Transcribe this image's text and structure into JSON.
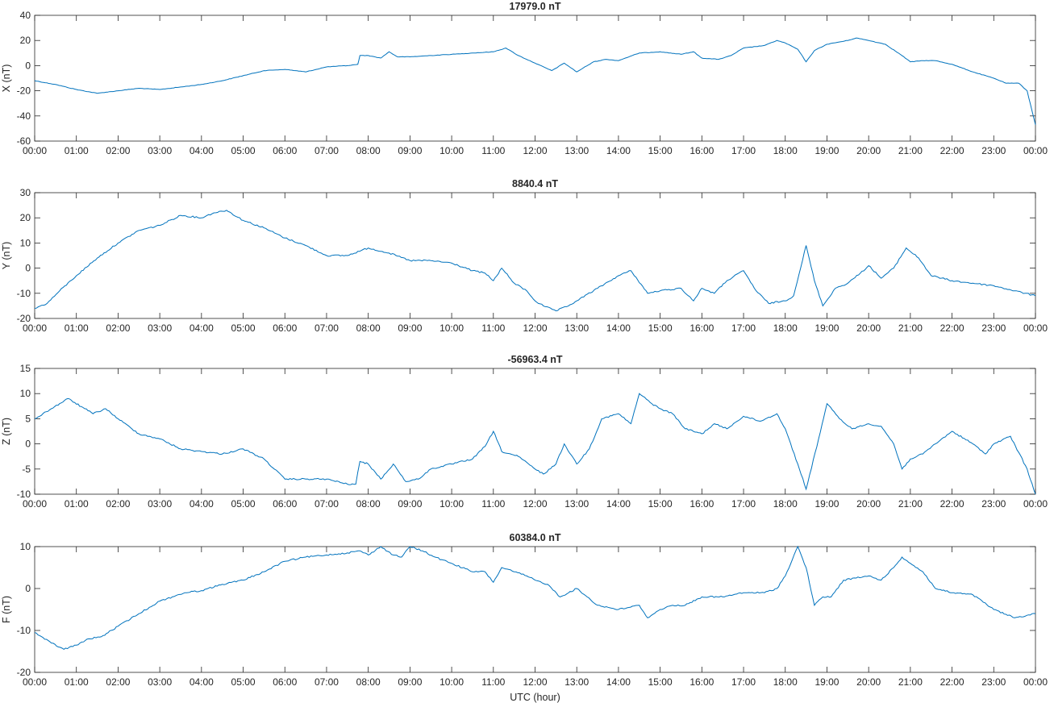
{
  "figure": {
    "xlabel": "UTC (hour)"
  },
  "chart_data": [
    {
      "type": "line",
      "title": "17979.0 nT",
      "xlabel": "",
      "ylabel": "X (nT)",
      "xlim": [
        0,
        24
      ],
      "ylim": [
        -60,
        40
      ],
      "yticks": [
        -60,
        -40,
        -20,
        0,
        20,
        40
      ],
      "xtick_labels": [
        "00:00",
        "01:00",
        "02:00",
        "03:00",
        "04:00",
        "05:00",
        "06:00",
        "07:00",
        "08:00",
        "09:00",
        "10:00",
        "11:00",
        "12:00",
        "13:00",
        "14:00",
        "15:00",
        "16:00",
        "17:00",
        "18:00",
        "19:00",
        "20:00",
        "21:00",
        "22:00",
        "23:00",
        "00:00"
      ],
      "grid": false,
      "color": "#0072BD",
      "x": [
        0,
        0.5,
        1.0,
        1.5,
        2.0,
        2.5,
        3.0,
        3.5,
        4.0,
        4.5,
        5.0,
        5.5,
        6.0,
        6.5,
        7.0,
        7.5,
        7.75,
        7.8,
        8.0,
        8.3,
        8.5,
        8.7,
        9.0,
        9.5,
        10.0,
        10.5,
        11.0,
        11.3,
        11.6,
        12.0,
        12.4,
        12.7,
        13.0,
        13.4,
        13.7,
        14.0,
        14.5,
        15.0,
        15.5,
        15.8,
        16.0,
        16.4,
        16.7,
        17.0,
        17.5,
        17.8,
        18.0,
        18.3,
        18.5,
        18.7,
        19.0,
        19.5,
        19.7,
        20.0,
        20.4,
        20.8,
        21.0,
        21.3,
        21.6,
        22.0,
        22.5,
        23.0,
        23.3,
        23.6,
        23.8,
        24.0
      ],
      "y": [
        -12,
        -15,
        -19,
        -22,
        -20,
        -18,
        -19,
        -17,
        -15,
        -12,
        -8,
        -4,
        -3,
        -5,
        -1,
        0,
        1,
        8,
        8,
        6,
        11,
        7,
        7,
        8,
        9,
        10,
        11,
        14,
        8,
        2,
        -4,
        2,
        -5,
        3,
        5,
        4,
        10,
        11,
        9,
        11,
        6,
        5,
        8,
        14,
        16,
        20,
        18,
        13,
        3,
        12,
        17,
        20,
        22,
        20,
        17,
        8,
        3,
        4,
        4,
        1,
        -5,
        -10,
        -14,
        -14,
        -20,
        -47
      ]
    },
    {
      "type": "line",
      "title": "8840.4 nT",
      "xlabel": "",
      "ylabel": "Y (nT)",
      "xlim": [
        0,
        24
      ],
      "ylim": [
        -20,
        30
      ],
      "yticks": [
        -20,
        -10,
        0,
        10,
        20,
        30
      ],
      "xtick_labels": [
        "00:00",
        "01:00",
        "02:00",
        "03:00",
        "04:00",
        "05:00",
        "06:00",
        "07:00",
        "08:00",
        "09:00",
        "10:00",
        "11:00",
        "12:00",
        "13:00",
        "14:00",
        "15:00",
        "16:00",
        "17:00",
        "18:00",
        "19:00",
        "20:00",
        "21:00",
        "22:00",
        "23:00",
        "00:00"
      ],
      "grid": false,
      "color": "#0072BD",
      "x": [
        0,
        0.3,
        0.6,
        1.0,
        1.5,
        2.0,
        2.5,
        3.0,
        3.5,
        4.0,
        4.3,
        4.6,
        5.0,
        5.5,
        6.0,
        6.5,
        7.0,
        7.5,
        8.0,
        8.5,
        9.0,
        9.5,
        10.0,
        10.5,
        10.8,
        11.0,
        11.2,
        11.5,
        11.8,
        12.0,
        12.2,
        12.5,
        12.8,
        13.0,
        13.5,
        14.0,
        14.3,
        14.7,
        15.0,
        15.5,
        15.8,
        16.0,
        16.3,
        16.6,
        17.0,
        17.3,
        17.6,
        18.0,
        18.2,
        18.5,
        18.7,
        18.9,
        19.2,
        19.5,
        19.8,
        20.0,
        20.3,
        20.6,
        20.9,
        21.2,
        21.5,
        22.0,
        22.5,
        23.0,
        23.5,
        24.0
      ],
      "y": [
        -16,
        -14,
        -9,
        -3,
        4,
        10,
        15,
        17,
        21,
        20,
        22,
        23,
        19,
        16,
        12,
        9,
        5,
        5,
        8,
        6,
        3,
        3,
        2,
        -1,
        -2,
        -5,
        0,
        -6,
        -9,
        -13,
        -15,
        -17,
        -15,
        -13,
        -8,
        -3,
        -1,
        -10,
        -9,
        -8,
        -13,
        -8,
        -10,
        -5,
        -1,
        -9,
        -14,
        -13,
        -11,
        9,
        -5,
        -15,
        -8,
        -6,
        -2,
        1,
        -4,
        0,
        8,
        4,
        -3,
        -5,
        -6,
        -7,
        -9,
        -11
      ]
    },
    {
      "type": "line",
      "title": "-56963.4 nT",
      "xlabel": "",
      "ylabel": "Z (nT)",
      "xlim": [
        0,
        24
      ],
      "ylim": [
        -10,
        15
      ],
      "yticks": [
        -10,
        -5,
        0,
        5,
        10,
        15
      ],
      "xtick_labels": [
        "00:00",
        "01:00",
        "02:00",
        "03:00",
        "04:00",
        "05:00",
        "06:00",
        "07:00",
        "08:00",
        "09:00",
        "10:00",
        "11:00",
        "12:00",
        "13:00",
        "14:00",
        "15:00",
        "16:00",
        "17:00",
        "18:00",
        "19:00",
        "20:00",
        "21:00",
        "22:00",
        "23:00",
        "00:00"
      ],
      "grid": false,
      "color": "#0072BD",
      "x": [
        0,
        0.4,
        0.8,
        1.2,
        1.4,
        1.7,
        2.0,
        2.5,
        3.0,
        3.5,
        4.0,
        4.5,
        5.0,
        5.5,
        6.0,
        6.5,
        7.0,
        7.5,
        7.7,
        7.8,
        8.0,
        8.3,
        8.6,
        8.9,
        9.2,
        9.5,
        10.0,
        10.5,
        10.8,
        11.0,
        11.2,
        11.6,
        12.0,
        12.2,
        12.5,
        12.7,
        13.0,
        13.3,
        13.6,
        14.0,
        14.3,
        14.5,
        14.8,
        15.0,
        15.3,
        15.6,
        16.0,
        16.3,
        16.6,
        17.0,
        17.4,
        17.8,
        18.0,
        18.3,
        18.5,
        18.8,
        19.0,
        19.3,
        19.6,
        20.0,
        20.3,
        20.6,
        20.8,
        21.0,
        21.3,
        21.6,
        22.0,
        22.5,
        22.8,
        23.0,
        23.4,
        23.8,
        24.0
      ],
      "y": [
        5,
        7,
        9,
        7,
        6,
        7,
        5,
        2,
        1,
        -1,
        -1.5,
        -2,
        -1,
        -3,
        -7,
        -7,
        -7,
        -8,
        -8,
        -3.5,
        -4,
        -7,
        -4,
        -7.5,
        -7,
        -5,
        -4,
        -3,
        -0.5,
        2.5,
        -1.5,
        -2.5,
        -5,
        -6,
        -4,
        0,
        -4,
        -1,
        5,
        6,
        4,
        10,
        8,
        7,
        6,
        3,
        2,
        4,
        3,
        5.5,
        4.5,
        6,
        3,
        -4,
        -9,
        1,
        8,
        5,
        3,
        4,
        3.5,
        0,
        -5,
        -3,
        -2,
        0,
        2.5,
        0,
        -2,
        0,
        1.5,
        -5,
        -10
      ]
    },
    {
      "type": "line",
      "title": "60384.0 nT",
      "xlabel": "UTC (hour)",
      "ylabel": "F (nT)",
      "xlim": [
        0,
        24
      ],
      "ylim": [
        -20,
        10
      ],
      "yticks": [
        -20,
        -10,
        0,
        10
      ],
      "xtick_labels": [
        "00:00",
        "01:00",
        "02:00",
        "03:00",
        "04:00",
        "05:00",
        "06:00",
        "07:00",
        "08:00",
        "09:00",
        "10:00",
        "11:00",
        "12:00",
        "13:00",
        "14:00",
        "15:00",
        "16:00",
        "17:00",
        "18:00",
        "19:00",
        "20:00",
        "21:00",
        "22:00",
        "23:00",
        "00:00"
      ],
      "grid": false,
      "color": "#0072BD",
      "x": [
        0,
        0.4,
        0.7,
        1.0,
        1.3,
        1.6,
        2.0,
        2.5,
        3.0,
        3.3,
        3.6,
        4.0,
        4.5,
        5.0,
        5.5,
        6.0,
        6.5,
        7.0,
        7.5,
        7.8,
        8.0,
        8.3,
        8.6,
        8.8,
        9.0,
        9.3,
        9.6,
        10.0,
        10.5,
        10.8,
        11.0,
        11.2,
        11.5,
        11.8,
        12.0,
        12.3,
        12.6,
        13.0,
        13.5,
        14.0,
        14.5,
        14.7,
        15.0,
        15.3,
        15.6,
        16.0,
        16.5,
        17.0,
        17.5,
        17.8,
        18.0,
        18.3,
        18.5,
        18.7,
        18.9,
        19.1,
        19.4,
        19.7,
        20.0,
        20.3,
        20.6,
        20.8,
        21.0,
        21.3,
        21.6,
        22.0,
        22.5,
        23.0,
        23.5,
        24.0
      ],
      "y": [
        -10.5,
        -13,
        -14.5,
        -13.5,
        -12,
        -11.5,
        -9,
        -6,
        -3,
        -2,
        -1,
        -0.5,
        1,
        2,
        4,
        6.5,
        7.5,
        8,
        8.5,
        9,
        8,
        10,
        8,
        7.5,
        10,
        9,
        7.5,
        6,
        4,
        4,
        1.5,
        5,
        4,
        3,
        2,
        1,
        -2,
        0,
        -4,
        -5,
        -4,
        -7,
        -5,
        -4,
        -4,
        -2,
        -2,
        -1,
        -1,
        0,
        3,
        10,
        5,
        -4,
        -2,
        -2,
        2,
        2.5,
        3,
        2,
        5,
        7.5,
        6,
        4,
        0,
        -1,
        -1.5,
        -5,
        -7,
        -6
      ]
    }
  ]
}
